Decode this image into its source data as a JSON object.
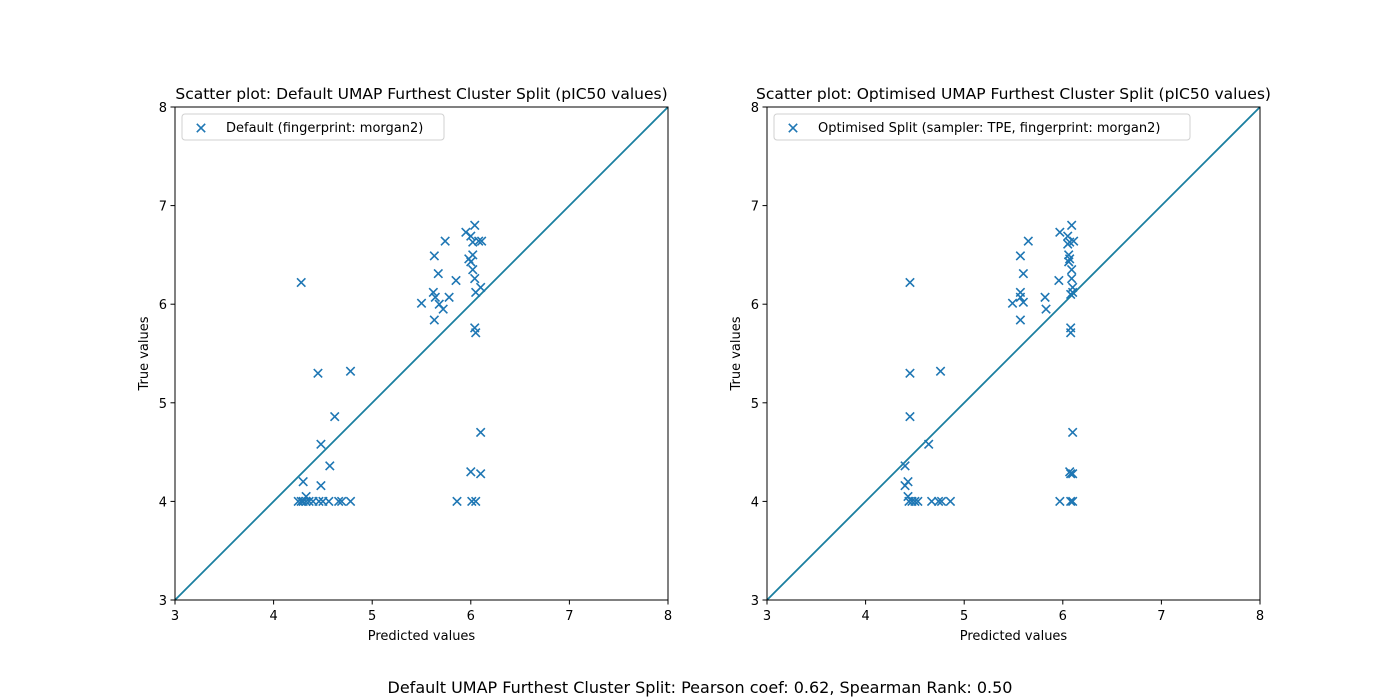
{
  "figure_caption": "Default UMAP Furthest Cluster Split: Pearson coef: 0.62, Spearman Rank: 0.50",
  "colors": {
    "marker": "#1f77b4",
    "diagonal": "#1a7fa0"
  },
  "chart_data": [
    {
      "type": "scatter",
      "title": "Scatter plot: Default UMAP Furthest Cluster Split (pIC50 values)",
      "xlabel": "Predicted values",
      "ylabel": "True values",
      "xlim": [
        3,
        8
      ],
      "ylim": [
        3,
        8
      ],
      "xticks": [
        "3",
        "4",
        "5",
        "6",
        "7",
        "8"
      ],
      "yticks": [
        "3",
        "4",
        "5",
        "6",
        "7",
        "8"
      ],
      "grid": false,
      "legend_position": "upper-left",
      "marker": "x",
      "reference_line": "y = x",
      "series": [
        {
          "name": "Default (fingerprint: morgan2)",
          "points": [
            [
              4.28,
              6.22
            ],
            [
              4.45,
              5.3
            ],
            [
              4.78,
              5.32
            ],
            [
              4.62,
              4.86
            ],
            [
              4.48,
              4.58
            ],
            [
              4.57,
              4.36
            ],
            [
              4.3,
              4.2
            ],
            [
              4.48,
              4.16
            ],
            [
              4.33,
              4.05
            ],
            [
              4.25,
              4.0
            ],
            [
              4.28,
              4.0
            ],
            [
              4.3,
              4.0
            ],
            [
              4.33,
              4.0
            ],
            [
              4.36,
              4.0
            ],
            [
              4.4,
              4.0
            ],
            [
              4.46,
              4.0
            ],
            [
              4.5,
              4.0
            ],
            [
              4.56,
              4.0
            ],
            [
              4.66,
              4.0
            ],
            [
              4.69,
              4.0
            ],
            [
              4.78,
              4.0
            ],
            [
              5.5,
              6.01
            ],
            [
              5.62,
              6.12
            ],
            [
              5.64,
              6.07
            ],
            [
              5.63,
              5.84
            ],
            [
              5.68,
              6.0
            ],
            [
              5.72,
              5.95
            ],
            [
              5.67,
              6.31
            ],
            [
              5.63,
              6.49
            ],
            [
              5.74,
              6.64
            ],
            [
              5.78,
              6.07
            ],
            [
              5.85,
              6.24
            ],
            [
              5.95,
              6.73
            ],
            [
              6.0,
              6.69
            ],
            [
              5.98,
              6.46
            ],
            [
              6.02,
              6.63
            ],
            [
              6.02,
              6.5
            ],
            [
              6.0,
              6.43
            ],
            [
              6.04,
              6.8
            ],
            [
              6.02,
              6.35
            ],
            [
              6.04,
              6.26
            ],
            [
              6.05,
              6.12
            ],
            [
              6.1,
              6.17
            ],
            [
              6.08,
              6.64
            ],
            [
              6.11,
              6.64
            ],
            [
              6.04,
              5.76
            ],
            [
              6.05,
              5.71
            ],
            [
              6.1,
              4.7
            ],
            [
              6.1,
              4.28
            ],
            [
              6.0,
              4.3
            ],
            [
              5.86,
              4.0
            ],
            [
              6.01,
              4.0
            ],
            [
              6.05,
              4.0
            ]
          ]
        }
      ]
    },
    {
      "type": "scatter",
      "title": "Scatter plot: Optimised UMAP Furthest Cluster Split (pIC50 values)",
      "xlabel": "Predicted values",
      "ylabel": "True values",
      "xlim": [
        3,
        8
      ],
      "ylim": [
        3,
        8
      ],
      "xticks": [
        "3",
        "4",
        "5",
        "6",
        "7",
        "8"
      ],
      "yticks": [
        "3",
        "4",
        "5",
        "6",
        "7",
        "8"
      ],
      "grid": false,
      "legend_position": "upper-left",
      "marker": "x",
      "reference_line": "y = x",
      "series": [
        {
          "name": "Optimised Split (sampler: TPE, fingerprint: morgan2)",
          "points": [
            [
              4.45,
              6.22
            ],
            [
              4.45,
              5.3
            ],
            [
              4.76,
              5.32
            ],
            [
              4.45,
              4.86
            ],
            [
              4.64,
              4.58
            ],
            [
              4.4,
              4.36
            ],
            [
              4.43,
              4.2
            ],
            [
              4.4,
              4.16
            ],
            [
              4.43,
              4.05
            ],
            [
              4.44,
              4.0
            ],
            [
              4.47,
              4.0
            ],
            [
              4.5,
              4.0
            ],
            [
              4.53,
              4.0
            ],
            [
              4.67,
              4.0
            ],
            [
              4.74,
              4.0
            ],
            [
              4.77,
              4.0
            ],
            [
              4.86,
              4.0
            ],
            [
              5.49,
              6.01
            ],
            [
              5.57,
              6.12
            ],
            [
              5.57,
              6.07
            ],
            [
              5.57,
              5.84
            ],
            [
              5.6,
              6.02
            ],
            [
              5.6,
              6.31
            ],
            [
              5.57,
              6.49
            ],
            [
              5.65,
              6.64
            ],
            [
              5.82,
              6.07
            ],
            [
              5.83,
              5.95
            ],
            [
              5.96,
              6.24
            ],
            [
              5.97,
              6.73
            ],
            [
              6.05,
              6.69
            ],
            [
              6.05,
              6.61
            ],
            [
              6.07,
              6.63
            ],
            [
              6.09,
              6.8
            ],
            [
              6.06,
              6.5
            ],
            [
              6.07,
              6.46
            ],
            [
              6.06,
              6.43
            ],
            [
              6.09,
              6.35
            ],
            [
              6.09,
              6.26
            ],
            [
              6.1,
              6.17
            ],
            [
              6.08,
              6.1
            ],
            [
              6.1,
              6.12
            ],
            [
              6.11,
              6.64
            ],
            [
              6.08,
              5.76
            ],
            [
              6.08,
              5.71
            ],
            [
              6.1,
              4.7
            ],
            [
              6.08,
              4.28
            ],
            [
              6.1,
              4.28
            ],
            [
              6.07,
              4.3
            ],
            [
              5.97,
              4.0
            ],
            [
              6.08,
              4.0
            ],
            [
              6.1,
              4.0
            ]
          ]
        }
      ]
    }
  ]
}
